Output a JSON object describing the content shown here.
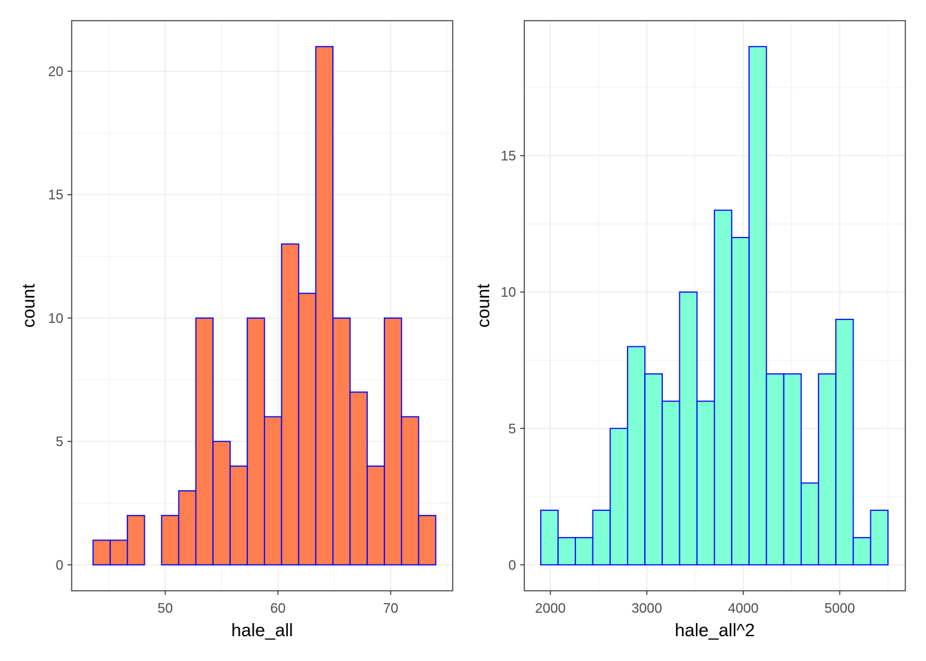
{
  "chart_data": [
    {
      "type": "bar",
      "subtype": "histogram",
      "xlabel": "hale_all",
      "ylabel": "count",
      "xlim": [
        41.7,
        75.5
      ],
      "ylim": [
        -1.05,
        22.05
      ],
      "x_ticks": [
        50,
        60,
        70
      ],
      "y_ticks": [
        0,
        5,
        10,
        15,
        20
      ],
      "bin_width": 1.52,
      "bins_start": [
        43.6,
        45.12,
        46.64,
        48.16,
        49.68,
        51.2,
        52.72,
        54.24,
        55.76,
        57.28,
        58.8,
        60.32,
        61.84,
        63.36,
        64.88,
        66.4,
        67.92,
        69.44,
        70.96,
        72.48
      ],
      "values": [
        1,
        1,
        2,
        0,
        2,
        3,
        10,
        5,
        4,
        10,
        6,
        13,
        11,
        21,
        10,
        7,
        4,
        10,
        6,
        2
      ],
      "fill_color": "#ff7f50",
      "edge_color": "#0000ff",
      "grid": true
    },
    {
      "type": "bar",
      "subtype": "histogram",
      "xlabel": "hale_all^2",
      "ylabel": "count",
      "xlim": [
        1730,
        5680
      ],
      "ylim": [
        -0.95,
        19.95
      ],
      "x_ticks": [
        2000,
        3000,
        4000,
        5000
      ],
      "y_ticks": [
        0,
        5,
        10,
        15
      ],
      "bin_width": 180,
      "bins_start": [
        1900,
        2080,
        2260,
        2440,
        2620,
        2800,
        2980,
        3160,
        3340,
        3520,
        3700,
        3880,
        4060,
        4240,
        4420,
        4600,
        4780,
        4960,
        5140,
        5320
      ],
      "values": [
        2,
        1,
        1,
        2,
        5,
        8,
        7,
        6,
        10,
        6,
        13,
        12,
        19,
        7,
        7,
        3,
        7,
        9,
        1,
        2
      ],
      "fill_color": "#7fffd4",
      "edge_color": "#0000ff",
      "grid": true
    }
  ]
}
